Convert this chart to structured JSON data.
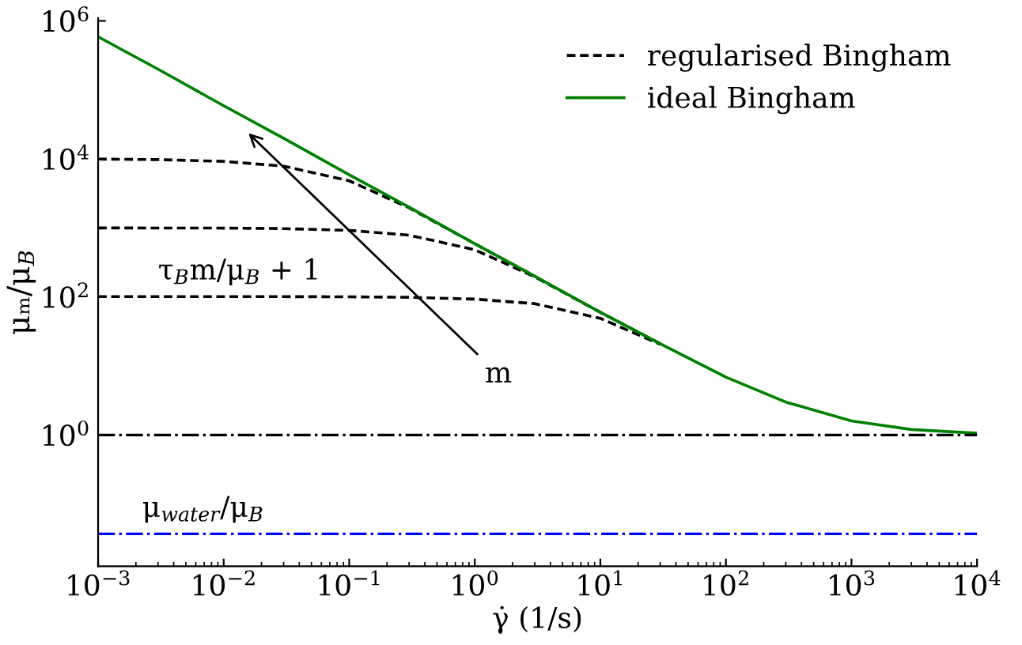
{
  "chart_data": {
    "type": "line",
    "xlabel": "γ̇ (1/s)",
    "ylabel": "μₘ/μ$_{B}$",
    "log": "xy",
    "xlim": [
      0.001,
      10000
    ],
    "ylim": [
      0.0125,
      1100000
    ],
    "xticks": [
      {
        "value": 0.001,
        "label": "10$^{−3}$"
      },
      {
        "value": 0.01,
        "label": "10$^{−2}$"
      },
      {
        "value": 0.1,
        "label": "10$^{−1}$"
      },
      {
        "value": 1,
        "label": "10$^{0}$"
      },
      {
        "value": 10,
        "label": "10$^{1}$"
      },
      {
        "value": 100,
        "label": "10$^{2}$"
      },
      {
        "value": 1000,
        "label": "10$^{3}$"
      },
      {
        "value": 10000,
        "label": "10$^{4}$"
      }
    ],
    "yticks": [
      {
        "value": 1,
        "label": "10$^{0}$"
      },
      {
        "value": 100,
        "label": "10$^{2}$"
      },
      {
        "value": 10000,
        "label": "10$^{4}$"
      },
      {
        "value": 1000000,
        "label": "10$^{6}$"
      }
    ],
    "x": [
      0.001,
      0.003,
      0.01,
      0.03,
      0.1,
      0.3,
      1,
      3,
      10,
      30,
      100,
      300,
      1000,
      3000,
      10000
    ],
    "series": [
      {
        "name": "regularised Bingham",
        "color": "#000000",
        "line_style": "dashed",
        "x": [
          0.001,
          0.003,
          0.01,
          0.03,
          0.1,
          0.3,
          1,
          3
        ],
        "values": [
          9950,
          9780,
          9220,
          7860,
          4820,
          1955,
          591,
          200
        ]
      },
      {
        "color": "#000000",
        "line_style": "dashed",
        "x": [
          0.001,
          0.003,
          0.01,
          0.03,
          0.1,
          0.3,
          1,
          3,
          10,
          30
        ],
        "values": [
          1000,
          998,
          995,
          978,
          922,
          786,
          483,
          196,
          60,
          21
        ]
      },
      {
        "color": "#000000",
        "line_style": "dashed",
        "x": [
          0.001,
          0.003,
          0.01,
          0.03,
          0.1,
          0.3,
          1,
          3,
          10,
          30
        ],
        "values": [
          101,
          101,
          101,
          101,
          100.5,
          98.8,
          93,
          80,
          49,
          20.6
        ]
      },
      {
        "name": "ideal Bingham",
        "color": "#008000",
        "line_style": "solid",
        "values": [
          590000,
          200000,
          59000,
          20000,
          5900,
          2000,
          590,
          200,
          60,
          21,
          6.9,
          3.0,
          1.6,
          1.2,
          1.06
        ]
      }
    ],
    "ref_lines": [
      {
        "axis": "y",
        "value": 1,
        "color": "#000000",
        "line_style": "dashdot"
      },
      {
        "axis": "y",
        "value": 0.037,
        "label": "μ$_{water}$/μ$_{B}$",
        "color": "#0000ff",
        "line_style": "dashdot"
      }
    ],
    "annotations": [
      {
        "text": "τ$_{B}$m/μ$_{B}$ + 1",
        "x": 0.003,
        "y": 101
      },
      "m"
    ],
    "legend": "top right",
    "grid": false,
    "marker": "none"
  }
}
